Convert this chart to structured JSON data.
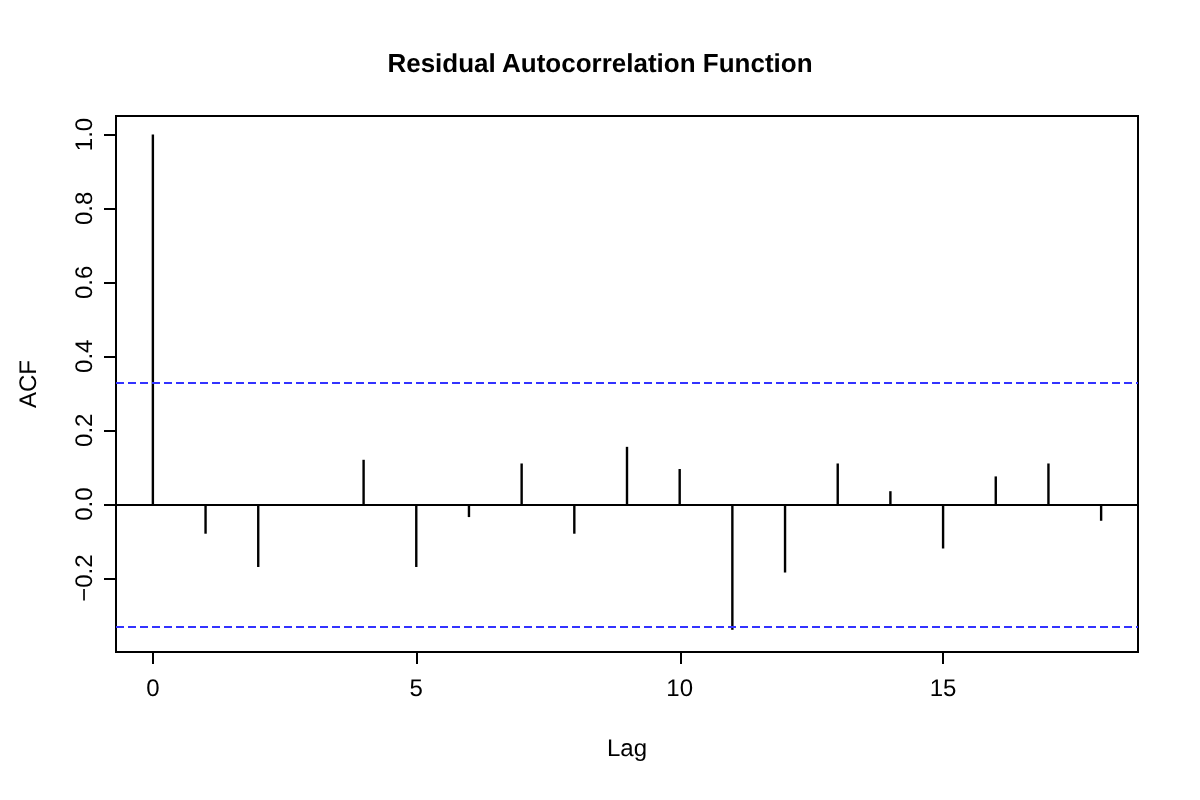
{
  "chart_data": {
    "type": "bar",
    "title": "Residual Autocorrelation Function",
    "xlabel": "Lag",
    "ylabel": "ACF",
    "x": [
      0,
      1,
      2,
      3,
      4,
      5,
      6,
      7,
      8,
      9,
      10,
      11,
      12,
      13,
      14,
      15,
      16,
      17,
      18
    ],
    "values": [
      1,
      -0.08,
      -0.17,
      -0.005,
      0.12,
      -0.17,
      -0.035,
      0.11,
      -0.08,
      0.155,
      0.095,
      -0.34,
      -0.185,
      0.11,
      0.035,
      -0.12,
      0.075,
      0.11,
      -0.045
    ],
    "color": "#000000",
    "xlim": [
      -0.7,
      18.7
    ],
    "xticks": [
      0,
      5,
      10,
      15
    ],
    "ylim": [
      -0.4,
      1.05
    ],
    "yticks": [
      {
        "value": -0.2,
        "label": "−0.2"
      },
      {
        "value": 0,
        "label": "0.0"
      },
      {
        "value": 0.2,
        "label": "0.2"
      },
      {
        "value": 0.4,
        "label": "0.4"
      },
      {
        "value": 0.6,
        "label": "0.6"
      },
      {
        "value": 0.8,
        "label": "0.8"
      },
      {
        "value": 1,
        "label": "1.0"
      }
    ],
    "ref_lines": [
      {
        "axis": "y",
        "value": 0,
        "color": "#000000",
        "line_style": "solid"
      },
      {
        "axis": "y",
        "value": 0.33,
        "color": "#3333ff",
        "line_style": "dashed"
      },
      {
        "axis": "y",
        "value": -0.33,
        "color": "#3333ff",
        "line_style": "dashed"
      }
    ],
    "grid": false
  }
}
